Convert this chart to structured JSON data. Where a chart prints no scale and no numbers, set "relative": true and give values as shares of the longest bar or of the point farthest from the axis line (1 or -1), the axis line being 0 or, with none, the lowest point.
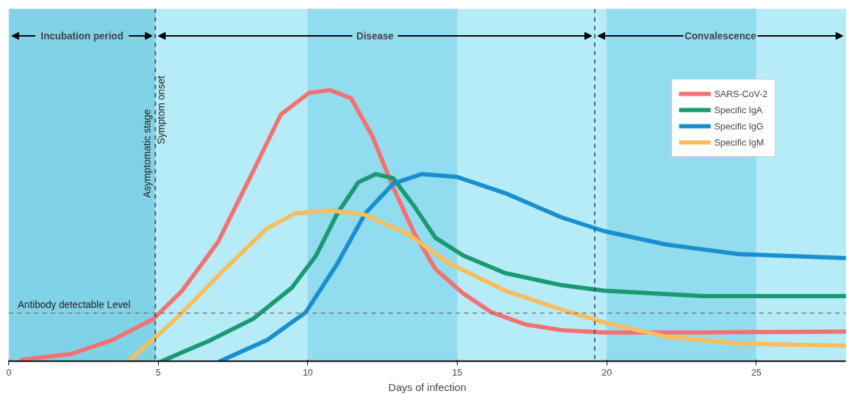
{
  "chart_data": {
    "type": "line",
    "relative": true,
    "xlabel": "Days of infection",
    "xlim": [
      0,
      28
    ],
    "xticks": [
      0,
      5,
      10,
      15,
      20,
      25
    ],
    "grid": false,
    "legend": "top right",
    "line_style": "solid",
    "marker": "none",
    "annotations": [
      "Incubation period",
      "Disease",
      "Convalescence",
      {
        "text": "Asymptomatic stage",
        "x": 4.9,
        "y": 0.93
      }
    ],
    "ref_lines": [
      {
        "axis": "x",
        "value": 4.9,
        "label": "Symptom onset",
        "line_style": "dashed",
        "color": "#333333"
      },
      {
        "axis": "x",
        "value": 19.6,
        "line_style": "dashed",
        "color": "#333333"
      },
      {
        "axis": "y",
        "value": 0.177,
        "label": "Antibody detectable Level",
        "line_style": "dashed",
        "color": "#777777"
      }
    ],
    "bands": [
      {
        "axis": "x",
        "from": 0,
        "to": 4.9,
        "color": "#80d2e6"
      },
      {
        "axis": "x",
        "from": 10,
        "to": 15,
        "color": "#92dcef"
      },
      {
        "axis": "x",
        "from": 20,
        "to": 25,
        "color": "#92dcef"
      }
    ],
    "series": [
      {
        "name": "SARS-CoV-2",
        "color": "#f27272",
        "x": [
          0.42,
          2.07,
          3.47,
          4.84,
          5.8,
          7.0,
          8.17,
          9.1,
          10.05,
          10.75,
          11.45,
          12.16,
          12.86,
          13.57,
          14.27,
          15.2,
          16.15,
          17.3,
          18.5,
          19.9,
          23.2,
          28
        ],
        "values": [
          0.005,
          0.026,
          0.078,
          0.156,
          0.26,
          0.44,
          0.7,
          0.91,
          0.99,
          1.0,
          0.97,
          0.83,
          0.64,
          0.47,
          0.34,
          0.25,
          0.18,
          0.135,
          0.114,
          0.106,
          0.106,
          0.109
        ]
      },
      {
        "name": "Specific IgA",
        "color": "#1a9a73",
        "x": [
          5.12,
          6.76,
          8.17,
          9.46,
          10.28,
          10.99,
          11.69,
          12.28,
          12.86,
          13.57,
          14.27,
          15.2,
          16.6,
          18.5,
          19.9,
          23.2,
          28
        ],
        "values": [
          0,
          0.078,
          0.156,
          0.27,
          0.39,
          0.545,
          0.66,
          0.69,
          0.675,
          0.57,
          0.455,
          0.39,
          0.325,
          0.28,
          0.26,
          0.24,
          0.24
        ]
      },
      {
        "name": "Specific IgG",
        "color": "#1a8fd0",
        "x": [
          7.07,
          8.64,
          9.93,
          10.99,
          11.92,
          12.86,
          13.8,
          14.98,
          16.6,
          18.5,
          19.9,
          22.0,
          24.4,
          28
        ],
        "values": [
          0,
          0.078,
          0.18,
          0.36,
          0.545,
          0.655,
          0.69,
          0.68,
          0.62,
          0.53,
          0.48,
          0.43,
          0.395,
          0.38
        ]
      },
      {
        "name": "Specific IgM",
        "color": "#f8bd5c",
        "x": [
          4.06,
          5.59,
          7.23,
          8.64,
          9.58,
          10.75,
          11.92,
          13.33,
          14.74,
          16.6,
          18.5,
          19.9,
          22.0,
          24.4,
          28
        ],
        "values": [
          0.005,
          0.156,
          0.34,
          0.49,
          0.545,
          0.556,
          0.54,
          0.47,
          0.36,
          0.26,
          0.19,
          0.143,
          0.09,
          0.065,
          0.057
        ]
      }
    ]
  }
}
